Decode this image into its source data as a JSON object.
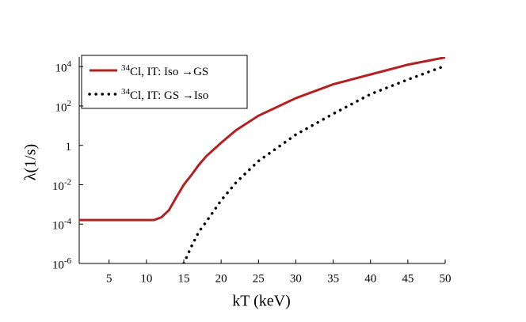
{
  "chart_data": {
    "type": "line",
    "x_label": "kT (keV)",
    "y_label": "λ(1/s)",
    "x": [
      1,
      5,
      10,
      11,
      12,
      13,
      14,
      15,
      16,
      17,
      18,
      20,
      22,
      25,
      30,
      35,
      40,
      45,
      50
    ],
    "series": [
      {
        "name": "^34Cl, IT: Iso →GS",
        "color": "#b22222",
        "dash": "solid",
        "values": [
          0.00016,
          0.00016,
          0.00016,
          0.00016,
          0.00022,
          0.0005,
          0.0023,
          0.01,
          0.03,
          0.1,
          0.28,
          1.35,
          5.9,
          32,
          250,
          1260,
          4000,
          12600,
          29500
        ]
      },
      {
        "name": "^34Cl, IT: GS →Iso",
        "color": "#000000",
        "dash": "dotted",
        "values": [
          null,
          null,
          null,
          null,
          null,
          null,
          null,
          1e-06,
          7e-06,
          4e-05,
          0.00013,
          0.0016,
          0.013,
          0.16,
          3.5,
          40,
          400,
          2200,
          11000
        ]
      }
    ],
    "xlim": [
      1,
      50
    ],
    "xticks": [
      5,
      10,
      15,
      20,
      25,
      30,
      35,
      40,
      45,
      50
    ],
    "ylim": [
      1e-06,
      31000
    ],
    "log_y": true,
    "yticks": [
      {
        "value": 1e-06,
        "label": "10^-6"
      },
      {
        "value": 0.0001,
        "label": "10^-4"
      },
      {
        "value": 0.01,
        "label": "10^-2"
      },
      1,
      {
        "value": 100,
        "label": "10^2"
      },
      {
        "value": 10000,
        "label": "10^4"
      }
    ],
    "legend": "upper left",
    "grid": false
  }
}
